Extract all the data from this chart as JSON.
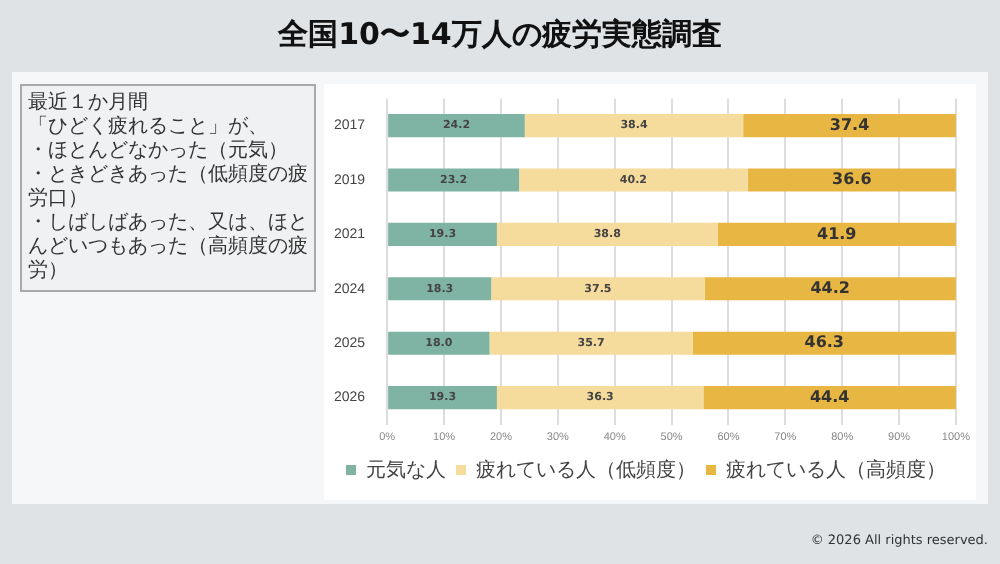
{
  "chart_data": {
    "type": "bar",
    "orientation": "horizontal",
    "stacked": true,
    "title": "全国10〜14万人の疲労実態調査",
    "annotations": [
      "最近１か月間",
      "「ひどく疲れること」が、",
      "・ほとんどなかった（元気）",
      "・ときどきあった（低頻度の疲労口）",
      "・しばしばあった、又は、ほとんどいつもあった（高頻度の疲労）",
      "© 2026 All rights reserved."
    ],
    "categories": [
      "2017",
      "2019",
      "2021",
      "2024",
      "2025",
      "2026"
    ],
    "series": [
      {
        "name": "元気な人",
        "color": "#7fb4a4",
        "values": [
          24.2,
          23.2,
          19.3,
          18.3,
          18.0,
          19.3
        ],
        "value_labels": [
          "24.2",
          "23.2",
          "19.3",
          "18.3",
          "18.0",
          "19.3"
        ]
      },
      {
        "name": "疲れている人（低頻度）",
        "color": "#f6dc9c",
        "values": [
          38.4,
          40.2,
          38.8,
          37.5,
          35.7,
          36.3
        ],
        "value_labels": [
          "38.4",
          "40.2",
          "38.8",
          "37.5",
          "35.7",
          "36.3"
        ]
      },
      {
        "name": "疲れている人（高頻度）",
        "color": "#e8b643",
        "values": [
          37.4,
          36.6,
          41.9,
          44.2,
          46.3,
          44.4
        ],
        "value_labels": [
          "37.4",
          "36.6",
          "41.9",
          "44.2",
          "46.3",
          "44.4"
        ]
      }
    ],
    "xlim": [
      0,
      100
    ],
    "xticks": [
      {
        "value": 0,
        "label": "0%"
      },
      {
        "value": 10,
        "label": "10%"
      },
      {
        "value": 20,
        "label": "20%"
      },
      {
        "value": 30,
        "label": "30%"
      },
      {
        "value": 40,
        "label": "40%"
      },
      {
        "value": 50,
        "label": "50%"
      },
      {
        "value": 60,
        "label": "60%"
      },
      {
        "value": 70,
        "label": "70%"
      },
      {
        "value": 80,
        "label": "80%"
      },
      {
        "value": 90,
        "label": "90%"
      },
      {
        "value": 100,
        "label": "100%"
      }
    ],
    "grid": "x",
    "legend": "bottom"
  }
}
